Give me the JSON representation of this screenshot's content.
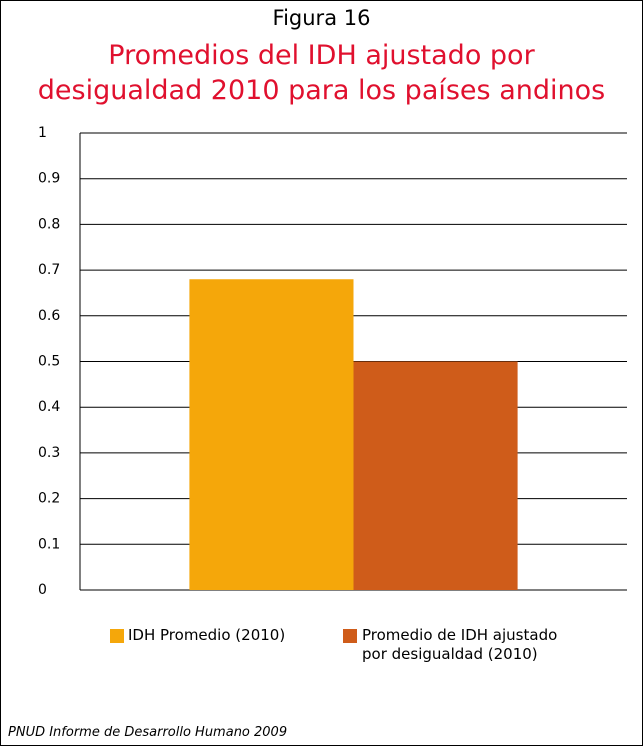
{
  "chart_data": {
    "type": "bar",
    "title": "Figura 16",
    "subtitle": "Promedios del IDH ajustado por desigualdad 2010 para los países andinos",
    "categories": [
      null
    ],
    "series": [
      {
        "name": "IDH Promedio (2010)",
        "color": "#f5a70a",
        "values": [
          0.68
        ]
      },
      {
        "name": "Promedio de IDH ajustado por desigualdad (2010)",
        "color": "#cf5c1a",
        "values": [
          0.5
        ]
      }
    ],
    "ylim": [
      0,
      1
    ],
    "yticks": [
      0,
      0.1,
      0.2,
      0.3,
      0.4,
      0.5,
      0.6,
      0.7,
      0.8,
      0.9,
      1
    ],
    "grid": true,
    "legend": "bottom",
    "source": "PNUD Informe de Desarrollo Humano 2009"
  }
}
